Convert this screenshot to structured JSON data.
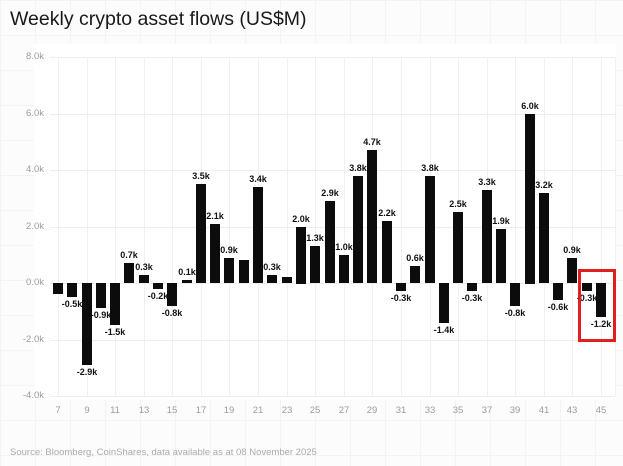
{
  "title": "Weekly crypto asset flows (US$M)",
  "source_note": "Source: Bloomberg, CoinShares, data available as at 08 November 2025",
  "colors": {
    "bar": "#0c0c0c",
    "highlight_box": "#e02020",
    "plot_grid": "#eeeeee",
    "axis_text": "#9c9c9c",
    "bar_label_text": "#111111",
    "title_text": "#191919",
    "source_text": "#ababab",
    "plot_bg": "#ffffff",
    "page_bg": "#fcfcfc"
  },
  "chart_data": {
    "type": "bar",
    "title": "Weekly crypto asset flows (US$M)",
    "xlabel": "",
    "ylabel": "",
    "ylim": [
      -4000,
      8000
    ],
    "grid": true,
    "legend": "none",
    "y_ticks": [
      {
        "label": "8.0k",
        "value": 8000
      },
      {
        "label": "6.0k",
        "value": 6000
      },
      {
        "label": "4.0k",
        "value": 4000
      },
      {
        "label": "2.0k",
        "value": 2000
      },
      {
        "label": "0.0k",
        "value": 0
      },
      {
        "label": "-2.0k",
        "value": -2000
      },
      {
        "label": "-4.0k",
        "value": -4000
      }
    ],
    "x_ticks": [
      7,
      9,
      11,
      13,
      15,
      17,
      19,
      21,
      23,
      25,
      27,
      29,
      31,
      33,
      35,
      37,
      39,
      41,
      43,
      45
    ],
    "bars": [
      {
        "week": 7,
        "value": -400,
        "label": ""
      },
      {
        "week": 8,
        "value": -500,
        "label": "-0.5k"
      },
      {
        "week": 9,
        "value": -2900,
        "label": "-2.9k"
      },
      {
        "week": 10,
        "value": -900,
        "label": "-0.9k"
      },
      {
        "week": 11,
        "value": -1500,
        "label": "-1.5k"
      },
      {
        "week": 12,
        "value": 700,
        "label": "0.7k"
      },
      {
        "week": 13,
        "value": 300,
        "label": "0.3k"
      },
      {
        "week": 14,
        "value": -200,
        "label": "-0.2k"
      },
      {
        "week": 15,
        "value": -800,
        "label": "-0.8k"
      },
      {
        "week": 16,
        "value": 100,
        "label": "0.1k"
      },
      {
        "week": 17,
        "value": 3500,
        "label": "3.5k"
      },
      {
        "week": 18,
        "value": 2100,
        "label": "2.1k"
      },
      {
        "week": 19,
        "value": 900,
        "label": "0.9k"
      },
      {
        "week": 20,
        "value": 800,
        "label": ""
      },
      {
        "week": 21,
        "value": 3400,
        "label": "3.4k"
      },
      {
        "week": 22,
        "value": 300,
        "label": "0.3k"
      },
      {
        "week": 23,
        "value": 200,
        "label": ""
      },
      {
        "week": 24,
        "value": 2000,
        "label": "2.0k"
      },
      {
        "week": 25,
        "value": 1300,
        "label": "1.3k"
      },
      {
        "week": 26,
        "value": 2900,
        "label": "2.9k"
      },
      {
        "week": 27,
        "value": 1000,
        "label": "1.0k"
      },
      {
        "week": 28,
        "value": 3800,
        "label": "3.8k"
      },
      {
        "week": 29,
        "value": 4700,
        "label": "4.7k"
      },
      {
        "week": 30,
        "value": 2200,
        "label": "2.2k"
      },
      {
        "week": 31,
        "value": -300,
        "label": "-0.3k"
      },
      {
        "week": 32,
        "value": 600,
        "label": "0.6k"
      },
      {
        "week": 33,
        "value": 3800,
        "label": "3.8k"
      },
      {
        "week": 34,
        "value": -1400,
        "label": "-1.4k"
      },
      {
        "week": 35,
        "value": 2500,
        "label": "2.5k"
      },
      {
        "week": 36,
        "value": -300,
        "label": "-0.3k"
      },
      {
        "week": 37,
        "value": 3300,
        "label": "3.3k"
      },
      {
        "week": 38,
        "value": 1900,
        "label": "1.9k"
      },
      {
        "week": 39,
        "value": -800,
        "label": "-0.8k"
      },
      {
        "week": 40,
        "value": 6000,
        "label": "6.0k"
      },
      {
        "week": 41,
        "value": 3200,
        "label": "3.2k"
      },
      {
        "week": 42,
        "value": -600,
        "label": "-0.6k"
      },
      {
        "week": 43,
        "value": 900,
        "label": "0.9k"
      },
      {
        "week": 44,
        "value": -300,
        "label": "-0.3k"
      },
      {
        "week": 45,
        "value": -1200,
        "label": "-1.2k"
      }
    ],
    "highlight": {
      "weeks": [
        44,
        45
      ],
      "color": "#e02020"
    }
  }
}
